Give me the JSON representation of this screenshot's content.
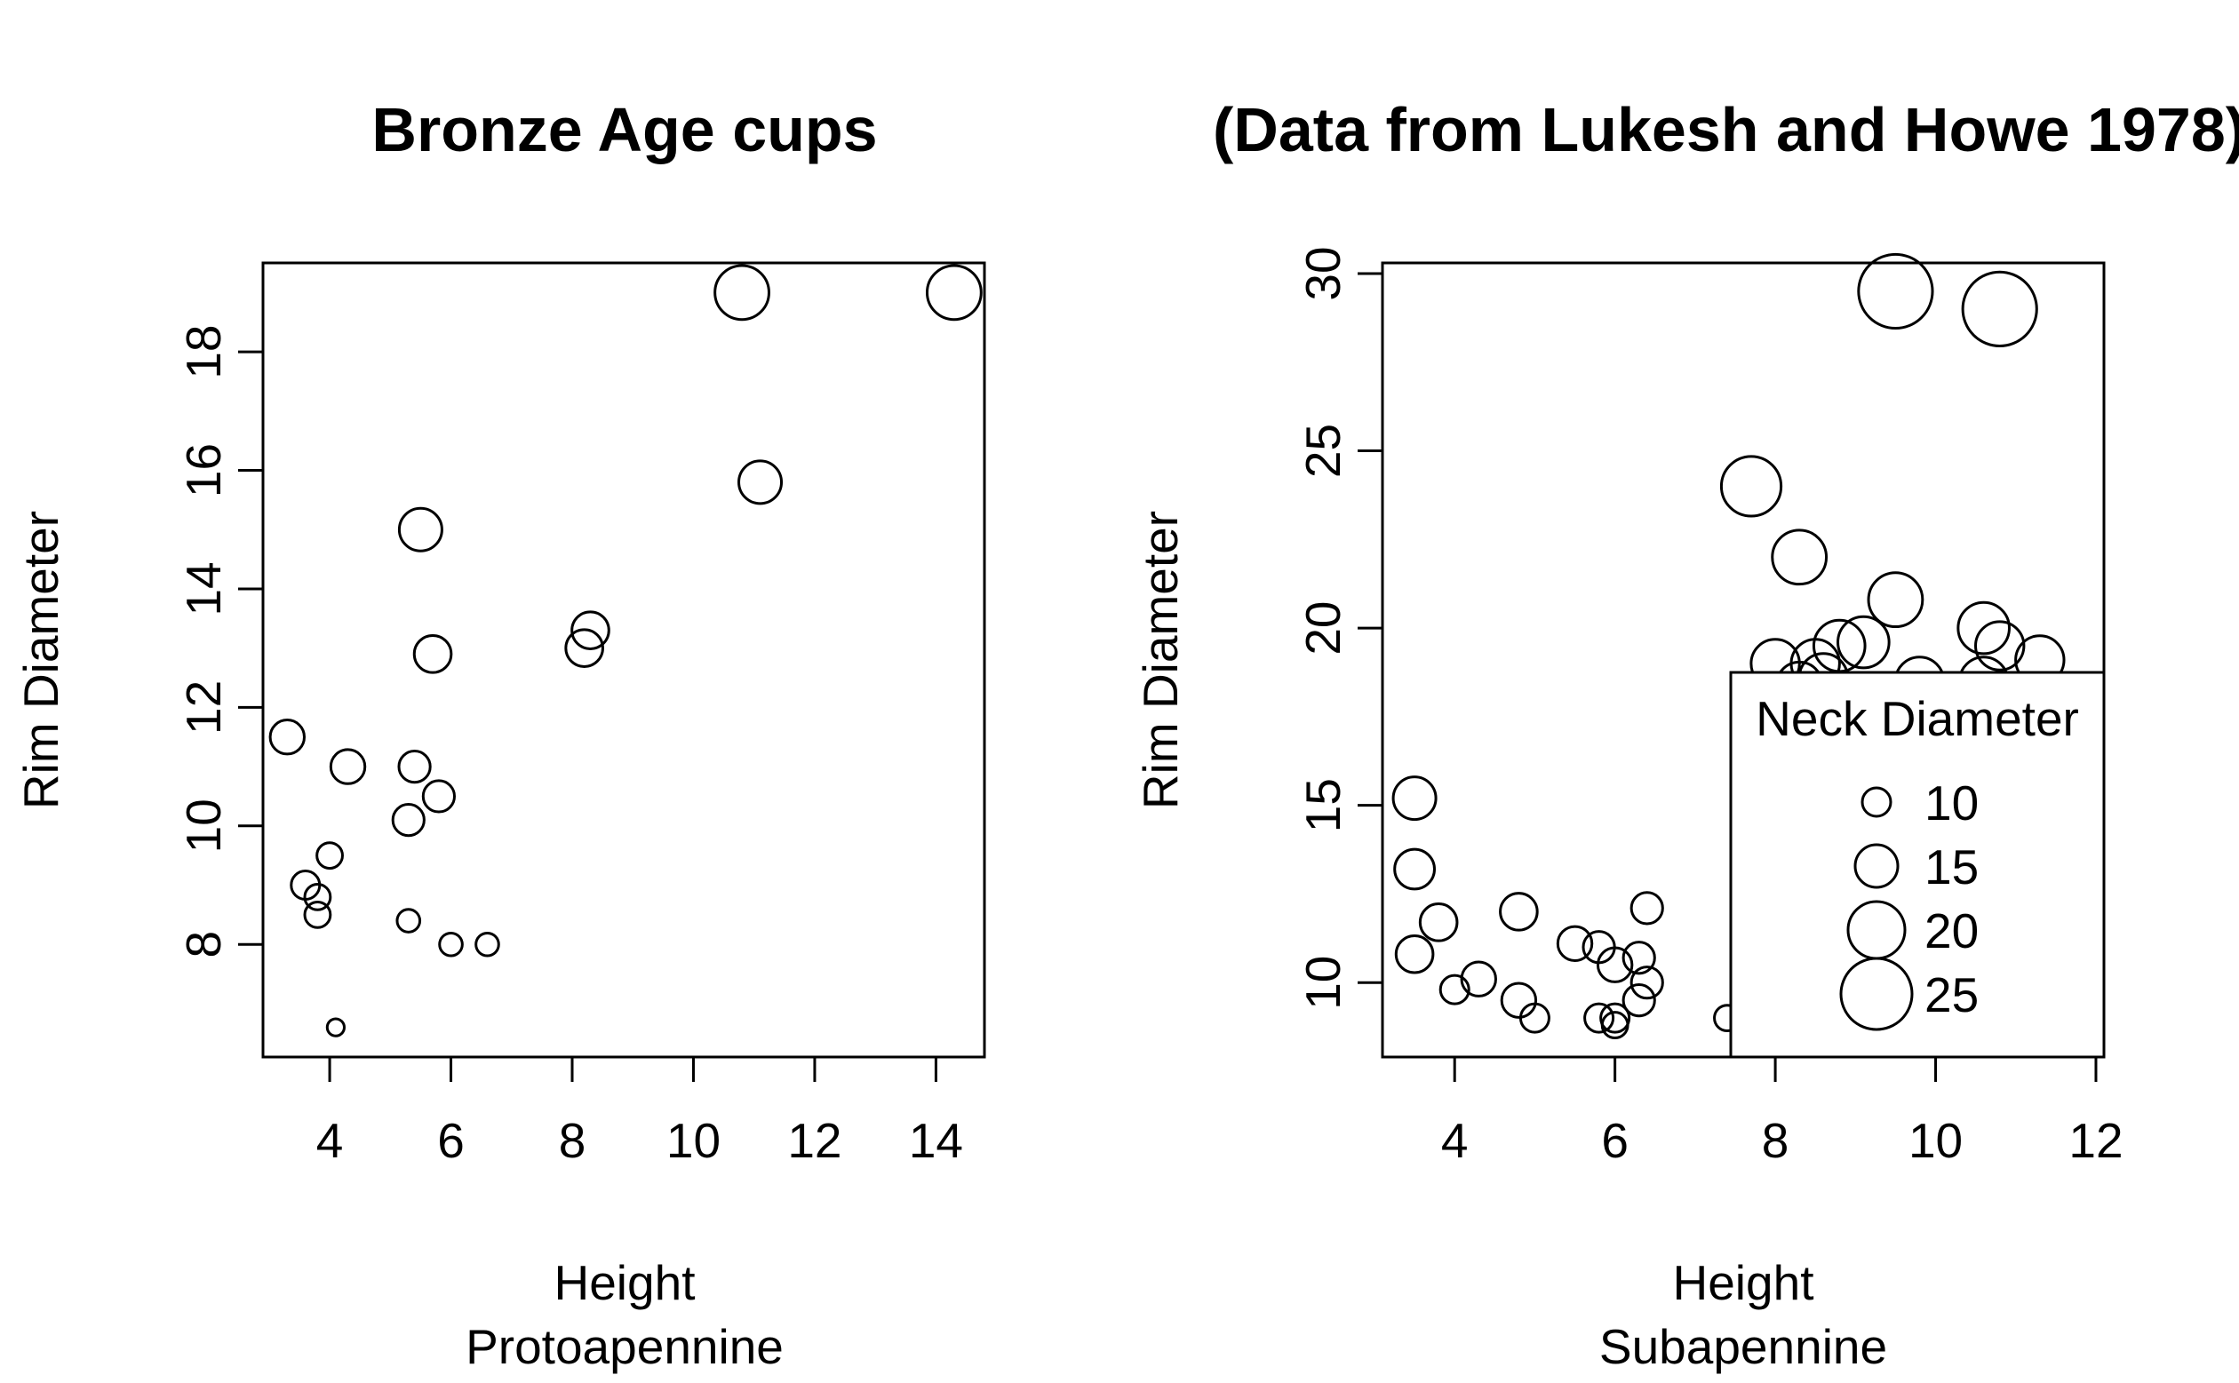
{
  "chart_data": [
    {
      "type": "scatter",
      "title": "Bronze Age cups",
      "xlabel": "Height",
      "xsublabel": "Protoapennine",
      "ylabel": "Rim Diameter",
      "xlim": [
        2.9,
        14.8
      ],
      "ylim": [
        6.1,
        19.5
      ],
      "xticks": [
        4,
        6,
        8,
        10,
        12,
        14
      ],
      "yticks": [
        8,
        10,
        12,
        14,
        16,
        18
      ],
      "grid": false,
      "size_variable": "Neck Diameter",
      "points": [
        {
          "x": 3.3,
          "y": 11.5,
          "size": 12
        },
        {
          "x": 3.6,
          "y": 9.0,
          "size": 10
        },
        {
          "x": 3.8,
          "y": 8.8,
          "size": 9
        },
        {
          "x": 3.8,
          "y": 8.5,
          "size": 9
        },
        {
          "x": 4.0,
          "y": 9.5,
          "size": 9
        },
        {
          "x": 4.1,
          "y": 6.6,
          "size": 6
        },
        {
          "x": 4.3,
          "y": 11.0,
          "size": 12
        },
        {
          "x": 5.3,
          "y": 8.4,
          "size": 8
        },
        {
          "x": 5.3,
          "y": 10.1,
          "size": 11
        },
        {
          "x": 5.4,
          "y": 11.0,
          "size": 11
        },
        {
          "x": 5.5,
          "y": 15.0,
          "size": 15
        },
        {
          "x": 5.7,
          "y": 12.9,
          "size": 13
        },
        {
          "x": 5.8,
          "y": 10.5,
          "size": 11
        },
        {
          "x": 6.0,
          "y": 8.0,
          "size": 8
        },
        {
          "x": 6.6,
          "y": 8.0,
          "size": 8
        },
        {
          "x": 8.2,
          "y": 13.0,
          "size": 13
        },
        {
          "x": 8.3,
          "y": 13.3,
          "size": 13
        },
        {
          "x": 10.8,
          "y": 19.0,
          "size": 19
        },
        {
          "x": 11.1,
          "y": 15.8,
          "size": 15
        },
        {
          "x": 14.3,
          "y": 19.0,
          "size": 19
        }
      ]
    },
    {
      "type": "scatter",
      "title": "(Data from Lukesh and Howe 1978)",
      "xlabel": "Height",
      "xsublabel": "Subapennine",
      "ylabel": "Rim Diameter",
      "xlim": [
        3.1,
        12.1
      ],
      "ylim": [
        7.9,
        30.3
      ],
      "xticks": [
        4,
        6,
        8,
        10,
        12
      ],
      "yticks": [
        10,
        15,
        20,
        25,
        30
      ],
      "grid": false,
      "size_variable": "Neck Diameter",
      "legend": {
        "title": "Neck Diameter",
        "position": "bottom-right",
        "items": [
          {
            "label": "10",
            "size": 10
          },
          {
            "label": "15",
            "size": 15
          },
          {
            "label": "20",
            "size": 20
          },
          {
            "label": "25",
            "size": 25
          }
        ]
      },
      "points": [
        {
          "x": 3.5,
          "y": 15.2,
          "size": 15
        },
        {
          "x": 3.5,
          "y": 13.2,
          "size": 14
        },
        {
          "x": 3.5,
          "y": 10.8,
          "size": 13
        },
        {
          "x": 3.8,
          "y": 11.7,
          "size": 13
        },
        {
          "x": 4.0,
          "y": 9.8,
          "size": 10
        },
        {
          "x": 4.3,
          "y": 10.1,
          "size": 12
        },
        {
          "x": 4.8,
          "y": 12.0,
          "size": 13
        },
        {
          "x": 4.8,
          "y": 9.5,
          "size": 12
        },
        {
          "x": 5.0,
          "y": 9.0,
          "size": 10
        },
        {
          "x": 5.5,
          "y": 11.1,
          "size": 12
        },
        {
          "x": 5.8,
          "y": 11.0,
          "size": 11
        },
        {
          "x": 5.8,
          "y": 9.0,
          "size": 10
        },
        {
          "x": 6.0,
          "y": 10.5,
          "size": 12
        },
        {
          "x": 6.0,
          "y": 9.0,
          "size": 10
        },
        {
          "x": 6.0,
          "y": 8.8,
          "size": 9
        },
        {
          "x": 6.3,
          "y": 10.7,
          "size": 11
        },
        {
          "x": 6.3,
          "y": 9.5,
          "size": 11
        },
        {
          "x": 6.4,
          "y": 10.0,
          "size": 11
        },
        {
          "x": 6.4,
          "y": 12.1,
          "size": 11
        },
        {
          "x": 7.4,
          "y": 9.0,
          "size": 9
        },
        {
          "x": 7.7,
          "y": 24.0,
          "size": 21
        },
        {
          "x": 8.0,
          "y": 19.0,
          "size": 17
        },
        {
          "x": 8.3,
          "y": 22.0,
          "size": 19
        },
        {
          "x": 8.3,
          "y": 18.4,
          "size": 16
        },
        {
          "x": 8.5,
          "y": 19.0,
          "size": 17
        },
        {
          "x": 8.6,
          "y": 18.6,
          "size": 17
        },
        {
          "x": 8.8,
          "y": 19.5,
          "size": 18
        },
        {
          "x": 9.1,
          "y": 19.6,
          "size": 18
        },
        {
          "x": 9.5,
          "y": 29.5,
          "size": 26
        },
        {
          "x": 9.5,
          "y": 20.8,
          "size": 19
        },
        {
          "x": 9.8,
          "y": 18.5,
          "size": 17
        },
        {
          "x": 10.6,
          "y": 20.0,
          "size": 18
        },
        {
          "x": 10.6,
          "y": 18.5,
          "size": 17
        },
        {
          "x": 10.8,
          "y": 29.0,
          "size": 26
        },
        {
          "x": 10.8,
          "y": 19.5,
          "size": 17
        },
        {
          "x": 11.3,
          "y": 19.1,
          "size": 17
        }
      ]
    }
  ]
}
